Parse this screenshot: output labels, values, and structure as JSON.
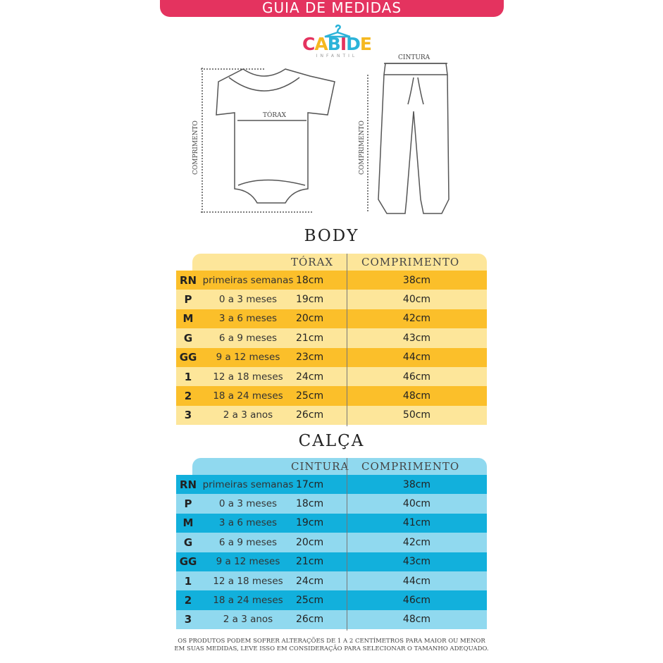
{
  "header": {
    "title": "GUIA DE MEDIDAS"
  },
  "logo": {
    "brand": "CABIDE",
    "sub": "INFANTIL"
  },
  "illustration": {
    "body_length": "COMPRIMENTO",
    "body_chest": "TÓRAX",
    "pants_length": "COMPRIMENTO",
    "pants_waist": "CINTURA"
  },
  "colors": {
    "header": "#e4335f",
    "yellow_dark": "#fbbf2a",
    "yellow_light": "#fde69a",
    "blue_dark": "#12b0dc",
    "blue_light": "#90d9ef"
  },
  "body_table": {
    "title": "BODY",
    "col1": "TÓRAX",
    "col2": "COMPRIMENTO",
    "rows": [
      {
        "size": "RN",
        "age": "primeiras semanas",
        "m1": "18cm",
        "m2": "38cm"
      },
      {
        "size": "P",
        "age": "0 a 3 meses",
        "m1": "19cm",
        "m2": "40cm"
      },
      {
        "size": "M",
        "age": "3 a 6 meses",
        "m1": "20cm",
        "m2": "42cm"
      },
      {
        "size": "G",
        "age": "6 a 9 meses",
        "m1": "21cm",
        "m2": "43cm"
      },
      {
        "size": "GG",
        "age": "9 a 12 meses",
        "m1": "23cm",
        "m2": "44cm"
      },
      {
        "size": "1",
        "age": "12 a 18 meses",
        "m1": "24cm",
        "m2": "46cm"
      },
      {
        "size": "2",
        "age": "18 a 24 meses",
        "m1": "25cm",
        "m2": "48cm"
      },
      {
        "size": "3",
        "age": "2 a 3 anos",
        "m1": "26cm",
        "m2": "50cm"
      }
    ]
  },
  "pants_table": {
    "title": "CALÇA",
    "col1": "CINTURA",
    "col2": "COMPRIMENTO",
    "rows": [
      {
        "size": "RN",
        "age": "primeiras semanas",
        "m1": "17cm",
        "m2": "38cm"
      },
      {
        "size": "P",
        "age": "0 a 3 meses",
        "m1": "18cm",
        "m2": "40cm"
      },
      {
        "size": "M",
        "age": "3 a 6 meses",
        "m1": "19cm",
        "m2": "41cm"
      },
      {
        "size": "G",
        "age": "6 a 9 meses",
        "m1": "20cm",
        "m2": "42cm"
      },
      {
        "size": "GG",
        "age": "9 a 12 meses",
        "m1": "21cm",
        "m2": "43cm"
      },
      {
        "size": "1",
        "age": "12 a 18 meses",
        "m1": "24cm",
        "m2": "44cm"
      },
      {
        "size": "2",
        "age": "18 a 24 meses",
        "m1": "25cm",
        "m2": "46cm"
      },
      {
        "size": "3",
        "age": "2 a 3 anos",
        "m1": "26cm",
        "m2": "48cm"
      }
    ]
  },
  "footer": {
    "line1": "OS PRODUTOS PODEM SOFRER ALTERAÇÕES DE 1 A 2 CENTÍMETROS PARA MAIOR OU MENOR",
    "line2": "EM SUAS MEDIDAS, LEVE ISSO EM CONSIDERAÇÃO PARA SELECIONAR O TAMANHO ADEQUADO."
  }
}
